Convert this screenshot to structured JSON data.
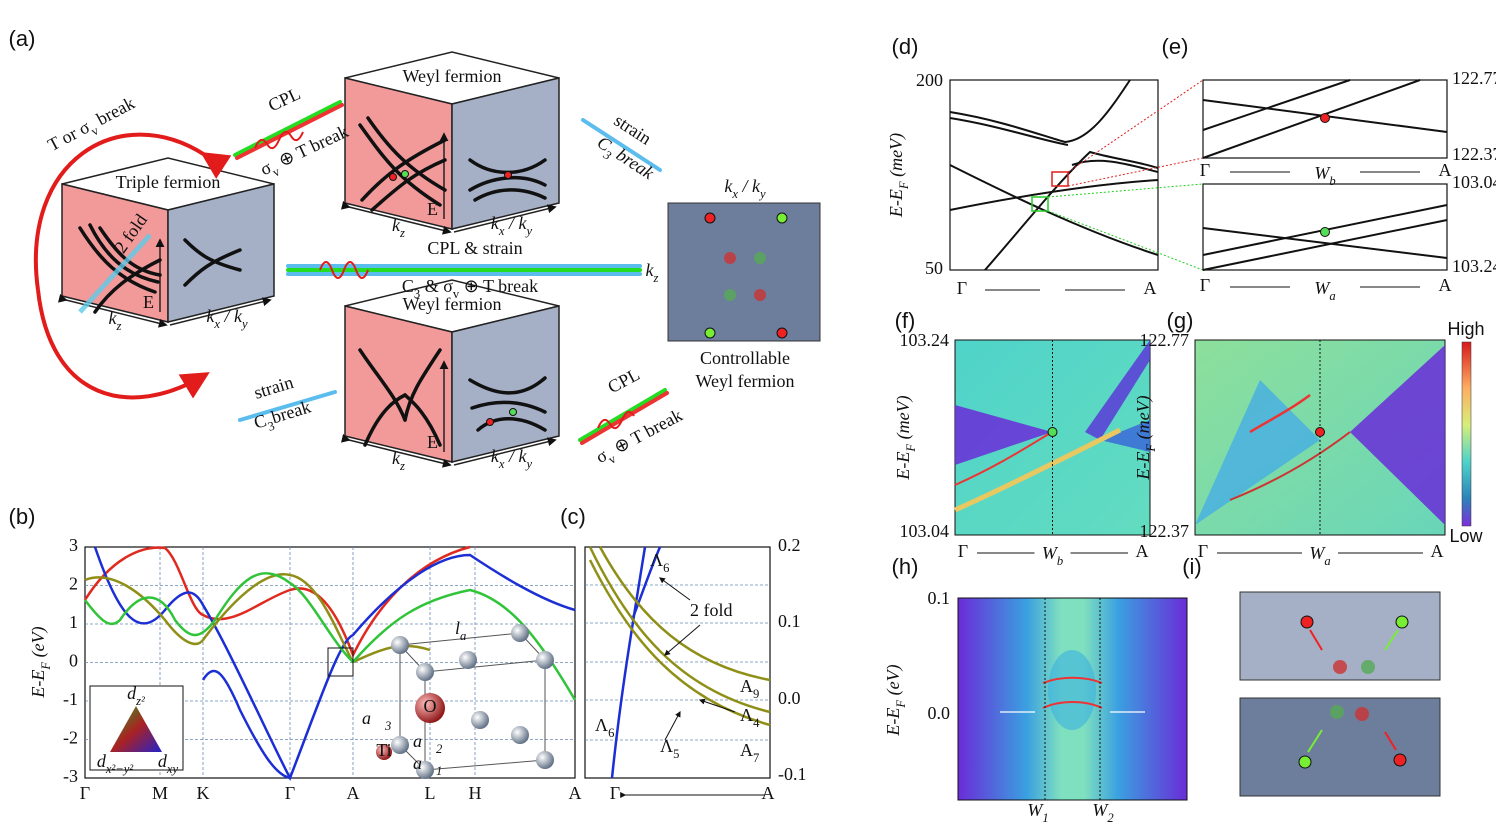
{
  "a": {
    "label": "(a)",
    "left_arrow": [
      "T",
      " or ",
      "σ",
      "v",
      " break"
    ],
    "cpl_top": "CPL",
    "cpl_top_cond": [
      "σ",
      "v",
      " ⊕ ",
      "T",
      " break"
    ],
    "strain_top": "strain",
    "strain_top_cond": [
      "C",
      "3",
      " break"
    ],
    "strain_bottom": "strain",
    "strain_bottom_cond": [
      "C",
      "3",
      "break"
    ],
    "cpl_bottom": "CPL",
    "cpl_bottom_cond": [
      "σ",
      "v",
      " ⊕ ",
      "T",
      " break"
    ],
    "middle": "CPL & strain",
    "middle_cond": [
      "C",
      "3",
      " & ",
      "σ",
      "v",
      " ⊕ ",
      "T",
      " break"
    ],
    "triple": {
      "title": "Triple fermion",
      "fold": "2 fold",
      "kz": [
        "k",
        "z"
      ],
      "E": "E",
      "kxky": [
        "k",
        "x",
        " / ",
        "k",
        "y"
      ]
    },
    "weyl_top": {
      "title": "Weyl fermion",
      "kz": [
        "k",
        "z"
      ],
      "E": "E",
      "kxky": [
        "k",
        "x",
        " / ",
        "k",
        "y"
      ]
    },
    "weyl_bottom": {
      "title": "Weyl fermion",
      "kz": [
        "k",
        "z"
      ],
      "E": "E",
      "kxky": [
        "k",
        "x",
        " / ",
        "k",
        "y"
      ]
    },
    "result": {
      "top": [
        "k",
        "x",
        " / ",
        "k",
        "y"
      ],
      "side": [
        "k",
        "z"
      ],
      "caption": [
        "Controllable",
        "Weyl fermion"
      ]
    }
  },
  "b": {
    "label": "(b)",
    "y_label": [
      "E-E",
      "F",
      " (eV)"
    ],
    "yticks": [
      "3",
      "2",
      "1",
      "0",
      "-1",
      "-2",
      "-3"
    ],
    "xticks": [
      "Γ",
      "M",
      "K",
      "Γ",
      "A",
      "L",
      "H",
      "A"
    ],
    "legend": {
      "top": [
        "d",
        "z²"
      ],
      "left": [
        "d",
        "x²−y²"
      ],
      "right": [
        "d",
        "xy"
      ]
    },
    "lattice": {
      "la": [
        "l",
        "a"
      ],
      "a3": [
        "a⃗",
        "3"
      ],
      "a2": [
        "a⃗",
        "2"
      ],
      "a1": [
        "a⃗",
        "1"
      ],
      "O": "O",
      "Ti": "Ti"
    }
  },
  "c": {
    "label": "(c)",
    "yticks": [
      "0.2",
      "0.1",
      "0.0",
      "-0.1"
    ],
    "xticks": [
      "Γ",
      "A"
    ],
    "bands": {
      "L6_top": [
        "Λ",
        "6"
      ],
      "fold": "2 fold",
      "A9": [
        "A",
        "9"
      ],
      "L4": [
        "Λ",
        "4"
      ],
      "L5": [
        "Λ",
        "5"
      ],
      "A7": [
        "A",
        "7"
      ],
      "L6_bottom": [
        "Λ",
        "6"
      ]
    }
  },
  "d": {
    "label": "(d)",
    "y_label": [
      "E-E",
      "F",
      " (meV)"
    ],
    "yticks": [
      "200",
      "50"
    ],
    "xticks": [
      "Γ",
      "A"
    ]
  },
  "e": {
    "label": "(e)",
    "top_yticks": [
      "122.77",
      "122.37"
    ],
    "bottom_yticks": [
      "103.04",
      "103.24"
    ],
    "top_xticks": [
      "Γ",
      [
        "W",
        "b"
      ],
      "A"
    ],
    "bottom_xticks": [
      "Γ",
      [
        "W",
        "a"
      ],
      "A"
    ]
  },
  "f": {
    "label": "(f)",
    "y_label": [
      "E-E",
      "F",
      " (meV)"
    ],
    "yticks": [
      "103.24",
      "103.04"
    ],
    "xticks": [
      "Γ",
      [
        "W",
        "b"
      ],
      "A"
    ]
  },
  "g": {
    "label": "(g)",
    "y_label": [
      "E-E",
      "F",
      " (meV)"
    ],
    "yticks": [
      "122.77",
      "122.37"
    ],
    "xticks": [
      "Γ",
      [
        "W",
        "a"
      ],
      "A"
    ],
    "colorbar": [
      "High",
      "Low"
    ]
  },
  "h": {
    "label": "(h)",
    "y_label": [
      "E-E",
      "F",
      " (eV)"
    ],
    "yticks": [
      "0.1",
      "0.0"
    ],
    "xticks": [
      [
        "W",
        "1"
      ],
      [
        "W",
        "2"
      ]
    ]
  },
  "i": {
    "label": "(i)"
  }
}
